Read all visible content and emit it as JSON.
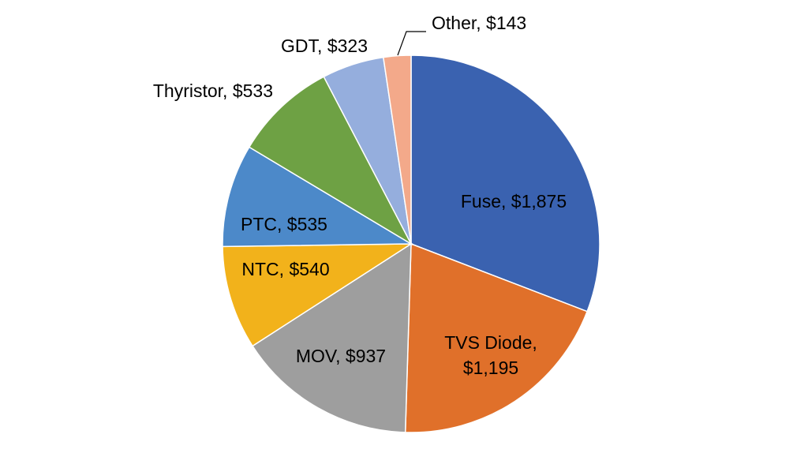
{
  "chart_data": {
    "type": "pie",
    "title": "",
    "slices": [
      {
        "label": "Fuse",
        "value": 1875,
        "display": "Fuse, $1,875",
        "color": "#3A62B0"
      },
      {
        "label": "TVS Diode",
        "value": 1195,
        "display": "TVS Diode, $1,195",
        "color": "#E0702A"
      },
      {
        "label": "MOV",
        "value": 937,
        "display": "MOV, $937",
        "color": "#9E9E9E"
      },
      {
        "label": "NTC",
        "value": 540,
        "display": "NTC, $540",
        "color": "#F2B21B"
      },
      {
        "label": "PTC",
        "value": 535,
        "display": "PTC, $535",
        "color": "#4C89C9"
      },
      {
        "label": "Thyristor",
        "value": 533,
        "display": "Thyristor, $533",
        "color": "#6EA144"
      },
      {
        "label": "GDT",
        "value": 323,
        "display": "GDT, $323",
        "color": "#95AEDD"
      },
      {
        "label": "Other",
        "value": 143,
        "display": "Other, $143",
        "color": "#F3A98A"
      }
    ],
    "start_angle": "12 o'clock",
    "direction": "clockwise",
    "legend": "none",
    "data_labels": "category name and value"
  }
}
